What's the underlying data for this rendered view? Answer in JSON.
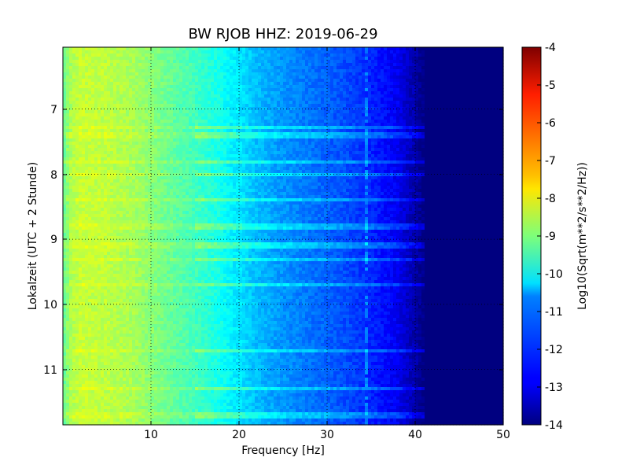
{
  "chart_data": {
    "type": "heatmap",
    "title": "BW RJOB HHZ: 2019-06-29",
    "xlabel": "Frequency [Hz]",
    "ylabel": "Lokalzeit (UTC + 2 Stunde)",
    "xlim": [
      0,
      50
    ],
    "ylim": [
      6.05,
      11.85
    ],
    "y_inverted": true,
    "grid": true,
    "x_ticks": [
      "10",
      "20",
      "30",
      "40",
      "50"
    ],
    "y_ticks": [
      "7",
      "8",
      "9",
      "10",
      "11"
    ],
    "colorbar": {
      "label": "Log10(Sqrt(m**2/s**2/Hz))",
      "min": -14,
      "max": -4,
      "ticks": [
        "-4",
        "-5",
        "-6",
        "-7",
        "-8",
        "-9",
        "-10",
        "-11",
        "-12",
        "-13",
        "-14"
      ],
      "colormap": "jet"
    },
    "profile_freq_hz": [
      0,
      1,
      2,
      5,
      8,
      10,
      12,
      15,
      18,
      20,
      22,
      25,
      28,
      30,
      32,
      35,
      38,
      40,
      41,
      50
    ],
    "profile_log10_psd": [
      -9.3,
      -8.5,
      -8.3,
      -8.4,
      -8.6,
      -8.9,
      -9.2,
      -9.6,
      -10.1,
      -10.5,
      -10.9,
      -11.3,
      -11.6,
      -11.8,
      -12.0,
      -12.4,
      -12.9,
      -13.6,
      -14.0,
      -14.0
    ],
    "bright_band_times": [
      7.28,
      7.4,
      7.8,
      8.0,
      8.4,
      8.8,
      9.1,
      9.3,
      9.7,
      10.7,
      11.3,
      11.7
    ],
    "spectral_line_hz": 34.5
  }
}
